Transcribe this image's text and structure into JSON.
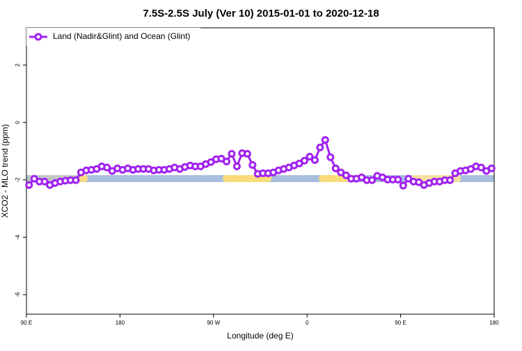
{
  "chart_data": {
    "type": "line",
    "title": "7.5S-2.5S July (Ver 10)   2015-01-01 to 2020-12-18",
    "x_label": "Longitude (deg E)",
    "y_label": "XCO2 - MLO trend (ppm)",
    "x": [
      92.5,
      97.5,
      102.5,
      107.5,
      112.5,
      117.5,
      122.5,
      127.5,
      132.5,
      137.5,
      142.5,
      147.5,
      152.5,
      157.5,
      162.5,
      167.5,
      172.5,
      177.5,
      182.5,
      187.5,
      192.5,
      197.5,
      202.5,
      207.5,
      212.5,
      217.5,
      222.5,
      227.5,
      232.5,
      237.5,
      242.5,
      247.5,
      252.5,
      257.5,
      262.5,
      267.5,
      272.5,
      277.5,
      282.5,
      287.5,
      292.5,
      297.5,
      302.5,
      307.5,
      312.5,
      317.5,
      322.5,
      327.5,
      332.5,
      337.5,
      342.5,
      347.5,
      352.5,
      357.5,
      362.5,
      367.5,
      372.5,
      377.5,
      382.5,
      387.5,
      392.5,
      397.5,
      402.5,
      407.5,
      412.5,
      417.5,
      422.5,
      427.5,
      432.5,
      437.5,
      442.5,
      447.5,
      452.5,
      457.5,
      462.5,
      467.5,
      472.5,
      477.5,
      482.5,
      487.5,
      492.5,
      497.5,
      502.5,
      507.5,
      512.5,
      517.5,
      522.5,
      527.5,
      532.5,
      537.5
    ],
    "series": [
      {
        "name": "Land (Nadir&Glint) and Ocean (Glint)",
        "color": "#a020f0",
        "values": [
          -2.18,
          -1.96,
          -2.06,
          -2.06,
          -2.18,
          -2.11,
          -2.06,
          -2.03,
          -2.01,
          -2.01,
          -1.74,
          -1.67,
          -1.65,
          -1.62,
          -1.53,
          -1.57,
          -1.69,
          -1.6,
          -1.65,
          -1.6,
          -1.65,
          -1.62,
          -1.62,
          -1.62,
          -1.67,
          -1.65,
          -1.65,
          -1.62,
          -1.57,
          -1.62,
          -1.55,
          -1.5,
          -1.53,
          -1.53,
          -1.45,
          -1.38,
          -1.28,
          -1.26,
          -1.36,
          -1.09,
          -1.53,
          -1.07,
          -1.09,
          -1.48,
          -1.79,
          -1.77,
          -1.77,
          -1.74,
          -1.67,
          -1.62,
          -1.57,
          -1.5,
          -1.43,
          -1.33,
          -1.19,
          -1.31,
          -0.87,
          -0.61,
          -1.21,
          -1.6,
          -1.74,
          -1.84,
          -1.96,
          -1.96,
          -1.91,
          -2.01,
          -2.01,
          -1.86,
          -1.91,
          -1.99,
          -1.99,
          -1.99,
          -2.2,
          -1.96,
          -2.06,
          -2.08,
          -2.18,
          -2.11,
          -2.06,
          -2.06,
          -2.01,
          -2.01,
          -1.77,
          -1.69,
          -1.67,
          -1.62,
          -1.53,
          -1.57,
          -1.69,
          -1.6
        ]
      }
    ],
    "xlim": [
      90,
      540
    ],
    "xticks": [
      {
        "value": 90,
        "label": "90 E"
      },
      180,
      {
        "value": 270,
        "label": "90 W"
      },
      {
        "value": 360,
        "label": "0"
      },
      {
        "value": 450,
        "label": "90 E"
      },
      {
        "value": 540,
        "label": "180"
      }
    ],
    "ylim": [
      -6.68,
      3.3
    ],
    "yticks": [
      -6,
      -4,
      -2,
      0,
      2
    ],
    "legend": "top-left"
  }
}
